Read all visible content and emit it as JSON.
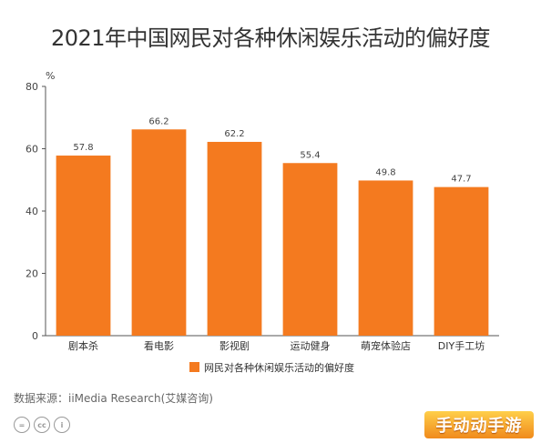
{
  "chart_data": {
    "type": "bar",
    "title": "2021年中国网民对各种休闲娱乐活动的偏好度",
    "ylabel": "%",
    "xlabel": "",
    "categories": [
      "剧本杀",
      "看电影",
      "影视剧",
      "运动健身",
      "萌宠体验店",
      "DIY手工坊"
    ],
    "series": [
      {
        "name": "网民对各种休闲娱乐活动的偏好度",
        "values": [
          57.8,
          66.2,
          62.2,
          55.4,
          49.8,
          47.7
        ]
      }
    ],
    "value_labels": [
      "57.8",
      "66.2",
      "62.2",
      "55.4",
      "49.8",
      "47.7"
    ],
    "ylim": [
      0,
      80
    ],
    "yticks": [
      0,
      20,
      40,
      60,
      80
    ],
    "grid": false,
    "legend_position": "bottom",
    "bar_color": "#f47a1f"
  },
  "source": "数据来源：iiMedia Research(艾媒咨询)",
  "license_icons": [
    "equal-icon",
    "cc-icon",
    "person-icon"
  ],
  "watermark": "手动动手游"
}
